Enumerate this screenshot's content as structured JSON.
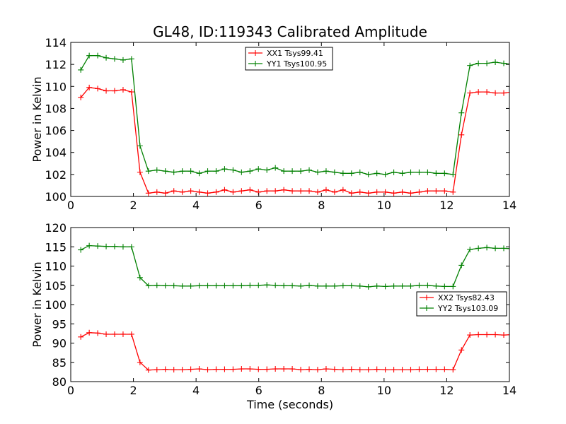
{
  "chart_data": [
    {
      "type": "line",
      "title": "GL48, ID:119343 Calibrated Amplitude",
      "xlabel": "",
      "ylabel": "Power in Kelvin",
      "xlim": [
        0,
        14
      ],
      "ylim": [
        100,
        114
      ],
      "xticks": [
        0,
        2,
        4,
        6,
        8,
        10,
        12,
        14
      ],
      "yticks": [
        100,
        102,
        104,
        106,
        108,
        110,
        112,
        114
      ],
      "grid": false,
      "legend_position": "top-center",
      "series": [
        {
          "name": "XX1 Tsys99.41",
          "color": "#ff0000",
          "x": [
            0.32,
            0.59,
            0.86,
            1.13,
            1.4,
            1.67,
            1.94,
            2.21,
            2.48,
            2.75,
            3.02,
            3.29,
            3.56,
            3.83,
            4.1,
            4.37,
            4.64,
            4.91,
            5.18,
            5.45,
            5.72,
            5.99,
            6.26,
            6.53,
            6.8,
            7.07,
            7.34,
            7.61,
            7.88,
            8.15,
            8.42,
            8.69,
            8.96,
            9.23,
            9.5,
            9.77,
            10.04,
            10.31,
            10.58,
            10.85,
            11.12,
            11.39,
            11.66,
            11.93,
            12.2,
            12.47,
            12.74,
            13.01,
            13.28,
            13.55,
            13.82,
            14.09
          ],
          "values": [
            109.0,
            109.9,
            109.8,
            109.6,
            109.6,
            109.7,
            109.5,
            102.2,
            100.3,
            100.4,
            100.3,
            100.5,
            100.4,
            100.5,
            100.4,
            100.3,
            100.4,
            100.6,
            100.4,
            100.5,
            100.6,
            100.4,
            100.5,
            100.5,
            100.6,
            100.5,
            100.5,
            100.5,
            100.4,
            100.6,
            100.4,
            100.6,
            100.3,
            100.4,
            100.3,
            100.4,
            100.4,
            100.3,
            100.4,
            100.3,
            100.4,
            100.5,
            100.5,
            100.5,
            100.4,
            105.6,
            109.4,
            109.5,
            109.5,
            109.4,
            109.4,
            109.5
          ]
        },
        {
          "name": "YY1 Tsys100.95",
          "color": "#008000",
          "x": [
            0.32,
            0.59,
            0.86,
            1.13,
            1.4,
            1.67,
            1.94,
            2.21,
            2.48,
            2.75,
            3.02,
            3.29,
            3.56,
            3.83,
            4.1,
            4.37,
            4.64,
            4.91,
            5.18,
            5.45,
            5.72,
            5.99,
            6.26,
            6.53,
            6.8,
            7.07,
            7.34,
            7.61,
            7.88,
            8.15,
            8.42,
            8.69,
            8.96,
            9.23,
            9.5,
            9.77,
            10.04,
            10.31,
            10.58,
            10.85,
            11.12,
            11.39,
            11.66,
            11.93,
            12.2,
            12.47,
            12.74,
            13.01,
            13.28,
            13.55,
            13.82,
            14.09
          ],
          "values": [
            111.5,
            112.8,
            112.8,
            112.6,
            112.5,
            112.4,
            112.5,
            104.6,
            102.3,
            102.4,
            102.3,
            102.2,
            102.3,
            102.3,
            102.1,
            102.3,
            102.3,
            102.5,
            102.4,
            102.2,
            102.3,
            102.5,
            102.4,
            102.6,
            102.3,
            102.3,
            102.3,
            102.4,
            102.2,
            102.3,
            102.2,
            102.1,
            102.1,
            102.2,
            102.0,
            102.1,
            102.0,
            102.2,
            102.1,
            102.2,
            102.2,
            102.2,
            102.1,
            102.1,
            102.0,
            107.6,
            111.9,
            112.1,
            112.1,
            112.2,
            112.1,
            112.0
          ]
        }
      ]
    },
    {
      "type": "line",
      "title": "",
      "xlabel": "Time (seconds)",
      "ylabel": "Power in Kelvin",
      "xlim": [
        0,
        14
      ],
      "ylim": [
        80,
        120
      ],
      "xticks": [
        0,
        2,
        4,
        6,
        8,
        10,
        12,
        14
      ],
      "yticks": [
        80,
        85,
        90,
        95,
        100,
        105,
        110,
        115,
        120
      ],
      "grid": false,
      "legend_position": "center-right",
      "series": [
        {
          "name": "XX2 Tsys82.43",
          "color": "#ff0000",
          "x": [
            0.32,
            0.59,
            0.86,
            1.13,
            1.4,
            1.67,
            1.94,
            2.21,
            2.48,
            2.75,
            3.02,
            3.29,
            3.56,
            3.83,
            4.1,
            4.37,
            4.64,
            4.91,
            5.18,
            5.45,
            5.72,
            5.99,
            6.26,
            6.53,
            6.8,
            7.07,
            7.34,
            7.61,
            7.88,
            8.15,
            8.42,
            8.69,
            8.96,
            9.23,
            9.5,
            9.77,
            10.04,
            10.31,
            10.58,
            10.85,
            11.12,
            11.39,
            11.66,
            11.93,
            12.2,
            12.47,
            12.74,
            13.01,
            13.28,
            13.55,
            13.82,
            14.09
          ],
          "values": [
            91.6,
            92.7,
            92.6,
            92.3,
            92.3,
            92.3,
            92.3,
            85.0,
            83.0,
            83.1,
            83.2,
            83.1,
            83.1,
            83.2,
            83.3,
            83.1,
            83.2,
            83.2,
            83.2,
            83.3,
            83.3,
            83.2,
            83.2,
            83.3,
            83.3,
            83.3,
            83.1,
            83.2,
            83.1,
            83.3,
            83.2,
            83.1,
            83.2,
            83.1,
            83.1,
            83.2,
            83.1,
            83.1,
            83.1,
            83.1,
            83.2,
            83.2,
            83.2,
            83.2,
            83.1,
            88.2,
            92.1,
            92.2,
            92.2,
            92.2,
            92.1,
            92.2
          ]
        },
        {
          "name": "YY2 Tsys103.09",
          "color": "#008000",
          "x": [
            0.32,
            0.59,
            0.86,
            1.13,
            1.4,
            1.67,
            1.94,
            2.21,
            2.48,
            2.75,
            3.02,
            3.29,
            3.56,
            3.83,
            4.1,
            4.37,
            4.64,
            4.91,
            5.18,
            5.45,
            5.72,
            5.99,
            6.26,
            6.53,
            6.8,
            7.07,
            7.34,
            7.61,
            7.88,
            8.15,
            8.42,
            8.69,
            8.96,
            9.23,
            9.5,
            9.77,
            10.04,
            10.31,
            10.58,
            10.85,
            11.12,
            11.39,
            11.66,
            11.93,
            12.2,
            12.47,
            12.74,
            13.01,
            13.28,
            13.55,
            13.82,
            14.09
          ],
          "values": [
            114.2,
            115.3,
            115.2,
            115.1,
            115.1,
            115.0,
            115.0,
            107.0,
            104.9,
            105.0,
            104.9,
            104.9,
            104.8,
            104.8,
            104.9,
            104.9,
            104.9,
            104.9,
            104.9,
            104.9,
            105.0,
            105.0,
            105.1,
            105.0,
            104.9,
            104.9,
            104.8,
            105.0,
            104.8,
            104.8,
            104.8,
            104.9,
            104.9,
            104.8,
            104.6,
            104.8,
            104.7,
            104.8,
            104.8,
            104.8,
            105.0,
            105.0,
            104.8,
            104.7,
            104.7,
            110.2,
            114.3,
            114.6,
            114.8,
            114.6,
            114.6,
            114.5
          ]
        }
      ]
    }
  ]
}
